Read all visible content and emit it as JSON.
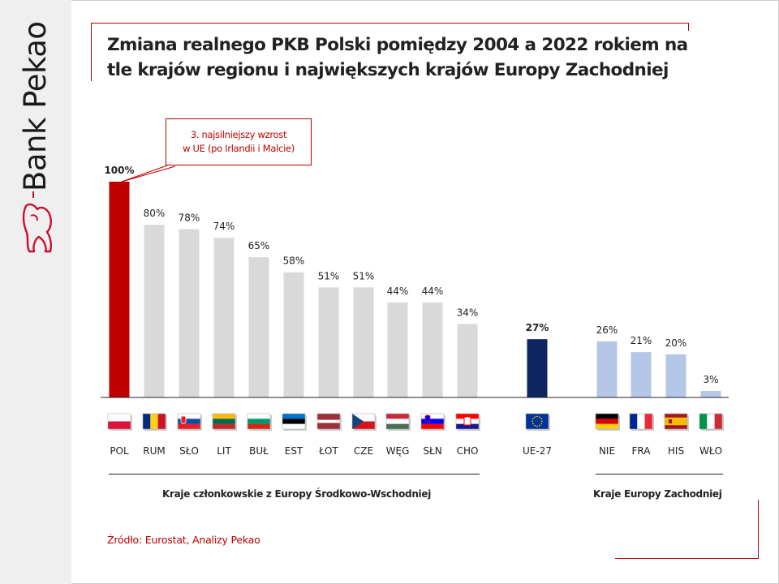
{
  "brand": {
    "name": "Bank Pekao",
    "red": "#c8102e"
  },
  "title": "Zmiana realnego PKB Polski pomiędzy 2004 a 2022 rokiem na tle krajów regionu i największych krajów Europy Zachodniej",
  "callout": {
    "line1": "3. najsilniejszy wzrost",
    "line2": "w UE (po Irlandii i Malcie)"
  },
  "chart_data": {
    "type": "bar",
    "title": "Zmiana realnego PKB Polski pomiędzy 2004 a 2022 rokiem na tle krajów regionu i największych krajów Europy Zachodniej",
    "xlabel": "",
    "ylabel": "",
    "ylim": [
      0,
      100
    ],
    "unit": "%",
    "categories": [
      "POL",
      "RUM",
      "SŁO",
      "LIT",
      "BUŁ",
      "EST",
      "ŁOT",
      "CZE",
      "WĘG",
      "SŁN",
      "CHO",
      "UE-27",
      "NIE",
      "FRA",
      "HIS",
      "WŁO"
    ],
    "values": [
      100,
      80,
      78,
      74,
      65,
      58,
      51,
      51,
      44,
      44,
      34,
      27,
      26,
      21,
      20,
      3
    ],
    "labels": [
      "100%",
      "80%",
      "78%",
      "74%",
      "65%",
      "58%",
      "51%",
      "51%",
      "44%",
      "44%",
      "34%",
      "27%",
      "26%",
      "21%",
      "20%",
      "3%"
    ],
    "bar_colors": [
      "#c00000",
      "#d9d9d9",
      "#d9d9d9",
      "#d9d9d9",
      "#d9d9d9",
      "#d9d9d9",
      "#d9d9d9",
      "#d9d9d9",
      "#d9d9d9",
      "#d9d9d9",
      "#d9d9d9",
      "#0d2561",
      "#b4c7e7",
      "#b4c7e7",
      "#b4c7e7",
      "#b4c7e7"
    ],
    "highlight_labels": {
      "POL": "#c00000",
      "UE-27": "#0d2561"
    },
    "groups": [
      {
        "name": "Kraje członkowskie z Europy Środkowo-Wschodniej",
        "members": [
          "POL",
          "RUM",
          "SŁO",
          "LIT",
          "BUŁ",
          "EST",
          "ŁOT",
          "CZE",
          "WĘG",
          "SŁN",
          "CHO"
        ]
      },
      {
        "name": "Kraje Europy Zachodniej",
        "members": [
          "NIE",
          "FRA",
          "HIS",
          "WŁO"
        ]
      }
    ]
  },
  "source": "Źródło: Eurostat, Analizy Pekao"
}
